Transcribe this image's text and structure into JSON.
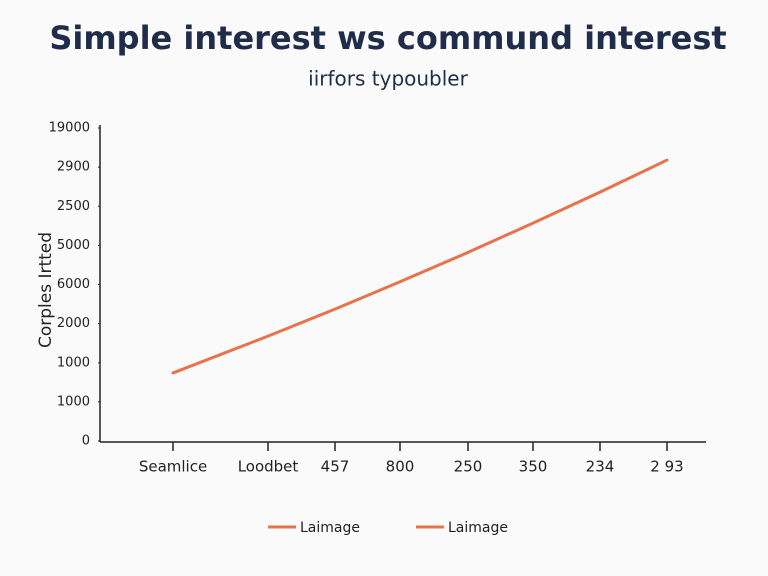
{
  "chart_data": {
    "type": "line",
    "title": "Simple interest ws commund interest",
    "subtitle": "iirfors typoubler",
    "y_label": "Corples Irtted",
    "categories": [
      "Seamlice",
      "Loodbet",
      "457",
      "800",
      "250",
      "350",
      "234",
      "2 93"
    ],
    "series": [
      {
        "name": "Laimage",
        "color": "#e8734a",
        "values": [
          1.74,
          2.68,
          3.37,
          4.07,
          4.82,
          5.57,
          6.36,
          7.18
        ]
      }
    ],
    "legend": [
      {
        "label": "Laimage",
        "color": "#e8734a"
      },
      {
        "label": "Laimage",
        "color": "#e8734a"
      }
    ],
    "ylim": [
      0,
      8
    ],
    "yticks": [
      0,
      {
        "value": 1,
        "label": "1000"
      },
      {
        "value": 2,
        "label": "1000"
      },
      {
        "value": 3,
        "label": "2000"
      },
      {
        "value": 4,
        "label": "6000"
      },
      {
        "value": 5,
        "label": "5000"
      },
      {
        "value": 6,
        "label": "2500"
      },
      {
        "value": 7,
        "label": "2900"
      },
      {
        "value": 8,
        "label": "19000"
      }
    ],
    "grid": false
  }
}
